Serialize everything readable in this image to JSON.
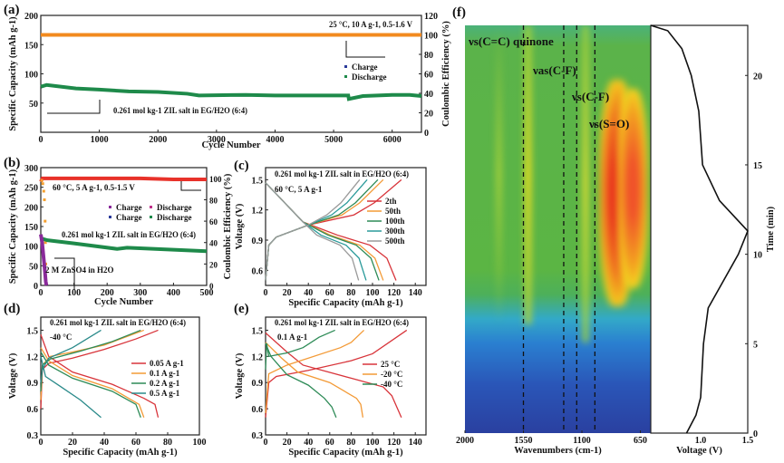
{
  "chart_data": [
    {
      "id": "a",
      "panel_label": "(a)",
      "type": "line",
      "xlabel": "Cycle Number",
      "ylabel": "Specific Capacity (mAh g-1)",
      "y2label": "Coulombic Efficiency (%)",
      "xlim": [
        0,
        6500
      ],
      "ylim": [
        0,
        200
      ],
      "y2lim": [
        0,
        120
      ],
      "xticks": [
        0,
        1000,
        2000,
        3000,
        4000,
        5000,
        6000
      ],
      "yticks": [
        50,
        100,
        150,
        200
      ],
      "y2ticks": [
        0,
        20,
        40,
        60,
        80,
        100,
        120
      ],
      "annotations": [
        "25 °C, 10 A g-1, 0.5-1.6 V",
        "0.261 mol kg-1 ZIL salt in EG/H2O (6:4)"
      ],
      "legend": [
        "Charge",
        "Discharge"
      ],
      "series": [
        {
          "name": "Coulombic Efficiency",
          "axis": "y2",
          "color": "#f28a1e",
          "x": [
            0,
            1000,
            2000,
            3000,
            4000,
            5000,
            6000,
            6500
          ],
          "y": [
            100,
            100,
            100,
            100,
            100,
            100,
            100,
            100
          ]
        },
        {
          "name": "Discharge",
          "axis": "y",
          "color": "#1e8a4a",
          "x": [
            0,
            100,
            600,
            1000,
            1500,
            2000,
            2500,
            2700,
            3500,
            4000,
            5250,
            5260,
            5500,
            6000,
            6300,
            6500
          ],
          "y": [
            78,
            81,
            75,
            73,
            70,
            69,
            66,
            63,
            64,
            63,
            63,
            57,
            62,
            64,
            64,
            62
          ]
        }
      ]
    },
    {
      "id": "b",
      "panel_label": "(b)",
      "type": "line",
      "xlabel": "Cycle Number",
      "ylabel": "Specific Capacity (mAh g-1)",
      "y2label": "Coulombic Efficiency (%)",
      "xlim": [
        0,
        500
      ],
      "ylim": [
        0,
        300
      ],
      "y2lim": [
        0,
        110
      ],
      "xticks": [
        0,
        100,
        200,
        300,
        400,
        500
      ],
      "yticks": [
        0,
        50,
        100,
        150,
        200,
        250,
        300
      ],
      "y2ticks": [
        0,
        20,
        40,
        60,
        80,
        100
      ],
      "annotations": [
        "60 °C, 5 A g-1, 0.5-1.5 V",
        "0.261 mol kg-1 ZIL salt in EG/H2O (6:4)",
        "2 M ZnSO4 in H2O"
      ],
      "legend": [
        "Charge",
        "Discharge",
        "Charge",
        "Discharge"
      ],
      "series": [
        {
          "name": "CE ZIL",
          "axis": "y2",
          "color": "#e8322a",
          "x": [
            0,
            5,
            100,
            200,
            300,
            400,
            500
          ],
          "y": [
            97,
            100,
            100,
            100,
            100,
            99,
            99
          ]
        },
        {
          "name": "CE ZnSO4",
          "axis": "y2",
          "color": "#f5a030",
          "x": [
            3,
            6,
            9,
            11,
            13,
            14,
            15
          ],
          "y": [
            98,
            95,
            88,
            80,
            60,
            40,
            20
          ],
          "scatter": true
        },
        {
          "name": "Discharge ZIL",
          "axis": "y",
          "color": "#1e8a4a",
          "x": [
            0,
            20,
            100,
            230,
            260,
            400,
            500
          ],
          "y": [
            120,
            115,
            107,
            93,
            96,
            91,
            87
          ]
        },
        {
          "name": "Discharge ZnSO4",
          "axis": "y",
          "color": "#8a2a9a",
          "x": [
            0,
            4,
            8,
            12,
            15,
            17
          ],
          "y": [
            130,
            110,
            75,
            40,
            10,
            0
          ]
        }
      ]
    },
    {
      "id": "c",
      "panel_label": "(c)",
      "type": "line",
      "xlabel": "Specific Capacity (mAh g-1)",
      "ylabel": "Voltage (V)",
      "xlim": [
        0,
        150
      ],
      "ylim": [
        0.45,
        1.62
      ],
      "xticks": [
        0,
        20,
        40,
        60,
        80,
        100,
        120,
        140
      ],
      "yticks": [
        0.6,
        0.9,
        1.2,
        1.5
      ],
      "annotations": [
        "0.261 mol kg-1 ZIL salt in EG/H2O (6:4)",
        "60 °C, 5 A g-1"
      ],
      "legend": [
        "2th",
        "50th",
        "100th",
        "300th",
        "500th"
      ],
      "series": [
        {
          "name": "2th",
          "color": "#d8343a",
          "charge_end": 127,
          "discharge_end": 122
        },
        {
          "name": "50th",
          "color": "#f39a36",
          "charge_end": 110,
          "discharge_end": 110
        },
        {
          "name": "100th",
          "color": "#2e8b57",
          "charge_end": 105,
          "discharge_end": 106
        },
        {
          "name": "300th",
          "color": "#2a9a9a",
          "charge_end": 95,
          "discharge_end": 94
        },
        {
          "name": "500th",
          "color": "#9a9a9a",
          "charge_end": 88,
          "discharge_end": 87
        }
      ]
    },
    {
      "id": "d",
      "panel_label": "(d)",
      "type": "line",
      "xlabel": "Specific Capacity (mAh g-1)",
      "ylabel": "Voltage (V)",
      "xlim": [
        0,
        100
      ],
      "ylim": [
        0.3,
        1.65
      ],
      "xticks": [
        0,
        20,
        40,
        60,
        80,
        100
      ],
      "yticks": [
        0.3,
        0.6,
        0.9,
        1.2,
        1.5
      ],
      "annotations": [
        "0.261 mol kg-1 ZIL salt in EG/H2O (6:4)",
        "-40 °C"
      ],
      "legend": [
        "0.05 A g-1",
        "0.1  A g-1",
        "0.2  A g-1",
        "0.5  A g-1"
      ],
      "series": [
        {
          "name": "0.05 A g-1",
          "color": "#d8343a",
          "charge": [
            [
              0,
              0.6
            ],
            [
              1,
              1.05
            ],
            [
              5,
              1.12
            ],
            [
              20,
              1.18
            ],
            [
              40,
              1.28
            ],
            [
              60,
              1.4
            ],
            [
              74,
              1.5
            ]
          ],
          "discharge": [
            [
              0,
              1.45
            ],
            [
              5,
              1.2
            ],
            [
              20,
              1.02
            ],
            [
              45,
              0.88
            ],
            [
              65,
              0.72
            ],
            [
              72,
              0.65
            ],
            [
              74,
              0.5
            ]
          ]
        },
        {
          "name": "0.1 A g-1",
          "color": "#f39a36",
          "charge": [
            [
              0,
              0.7
            ],
            [
              1,
              1.1
            ],
            [
              6,
              1.2
            ],
            [
              20,
              1.25
            ],
            [
              40,
              1.33
            ],
            [
              65,
              1.5
            ]
          ],
          "discharge": [
            [
              0,
              1.3
            ],
            [
              5,
              1.15
            ],
            [
              20,
              0.98
            ],
            [
              45,
              0.83
            ],
            [
              62,
              0.65
            ],
            [
              65,
              0.5
            ]
          ]
        },
        {
          "name": "0.2 A g-1",
          "color": "#2e8b57",
          "charge": [
            [
              0,
              0.8
            ],
            [
              1,
              1.1
            ],
            [
              6,
              1.17
            ],
            [
              25,
              1.26
            ],
            [
              45,
              1.37
            ],
            [
              63,
              1.5
            ]
          ],
          "discharge": [
            [
              0,
              1.25
            ],
            [
              5,
              1.1
            ],
            [
              20,
              0.95
            ],
            [
              45,
              0.8
            ],
            [
              60,
              0.65
            ],
            [
              63,
              0.5
            ]
          ]
        },
        {
          "name": "0.5 A g-1",
          "color": "#2a8a8a",
          "charge": [
            [
              0,
              0.9
            ],
            [
              1,
              1.05
            ],
            [
              5,
              1.18
            ],
            [
              20,
              1.3
            ],
            [
              38,
              1.5
            ]
          ],
          "discharge": [
            [
              0,
              1.2
            ],
            [
              3,
              0.97
            ],
            [
              12,
              0.86
            ],
            [
              25,
              0.7
            ],
            [
              38,
              0.5
            ]
          ]
        }
      ]
    },
    {
      "id": "e",
      "panel_label": "(e)",
      "type": "line",
      "xlabel": "Specific Capacity (mAh g-1)",
      "ylabel": "Voltage (V)",
      "xlim": [
        0,
        150
      ],
      "ylim": [
        0.3,
        1.65
      ],
      "xticks": [
        0,
        20,
        40,
        60,
        80,
        100,
        120,
        140
      ],
      "yticks": [
        0.3,
        0.6,
        0.9,
        1.2,
        1.5
      ],
      "annotations": [
        "0.261 mol kg-1 ZIL salt in EG/H2O (6:4)",
        "0.1 A g-1"
      ],
      "legend": [
        "25 °C",
        "-20 °C",
        "-40 °C"
      ],
      "series": [
        {
          "name": "25 °C",
          "color": "#d8343a",
          "charge": [
            [
              0,
              0.5
            ],
            [
              3,
              0.9
            ],
            [
              10,
              0.97
            ],
            [
              40,
              1.04
            ],
            [
              80,
              1.15
            ],
            [
              100,
              1.23
            ],
            [
              132,
              1.5
            ]
          ],
          "discharge": [
            [
              0,
              1.47
            ],
            [
              20,
              1.25
            ],
            [
              35,
              1.1
            ],
            [
              80,
              0.95
            ],
            [
              110,
              0.85
            ],
            [
              118,
              0.75
            ],
            [
              127,
              0.5
            ]
          ]
        },
        {
          "name": "-20 °C",
          "color": "#f39a36",
          "charge": [
            [
              0,
              0.55
            ],
            [
              3,
              1.0
            ],
            [
              20,
              1.1
            ],
            [
              70,
              1.3
            ],
            [
              80,
              1.36
            ],
            [
              92,
              1.5
            ]
          ],
          "discharge": [
            [
              0,
              1.36
            ],
            [
              15,
              1.18
            ],
            [
              30,
              1.02
            ],
            [
              60,
              0.9
            ],
            [
              85,
              0.72
            ],
            [
              89,
              0.65
            ],
            [
              91,
              0.5
            ]
          ]
        },
        {
          "name": "-40 °C",
          "color": "#2e8b57",
          "charge": [
            [
              0,
              1.05
            ],
            [
              1,
              1.35
            ],
            [
              3,
              1.2
            ],
            [
              20,
              1.24
            ],
            [
              35,
              1.3
            ],
            [
              50,
              1.42
            ],
            [
              65,
              1.5
            ]
          ],
          "discharge": [
            [
              0,
              1.35
            ],
            [
              5,
              1.2
            ],
            [
              20,
              0.99
            ],
            [
              40,
              0.87
            ],
            [
              55,
              0.72
            ],
            [
              62,
              0.62
            ],
            [
              66,
              0.5
            ]
          ]
        }
      ]
    },
    {
      "id": "f",
      "panel_label": "(f)",
      "type": "heatmap",
      "xlabel": "Wavenumbers (cm-1)",
      "ylabel": "Time (min)",
      "x2label": "Voltage (V)",
      "xlim": [
        2000,
        570
      ],
      "ylim": [
        0,
        22.8
      ],
      "vlim": [
        0.47,
        1.5
      ],
      "xticks": [
        2000,
        1550,
        1100,
        650
      ],
      "yticks": [
        0,
        5,
        10,
        15,
        20
      ],
      "vticks": [
        1.0,
        1.5
      ],
      "markers": [
        {
          "label": "νs(C=C) quinone",
          "x": 1550
        },
        {
          "label": "νas(C-F)",
          "x": 1240
        },
        {
          "label": "νs(C-F)",
          "x": 1140
        },
        {
          "label": "νs(S=O)",
          "x": 1000
        }
      ],
      "voltage_curve": {
        "t": [
          0,
          1,
          2,
          5,
          7,
          10,
          11.3,
          13,
          15,
          18,
          20,
          21.5,
          22.5,
          22.8
        ],
        "v": [
          0.85,
          0.95,
          1.0,
          1.03,
          1.08,
          1.4,
          1.5,
          1.2,
          1.02,
          0.98,
          0.9,
          0.8,
          0.65,
          0.47
        ]
      }
    }
  ]
}
